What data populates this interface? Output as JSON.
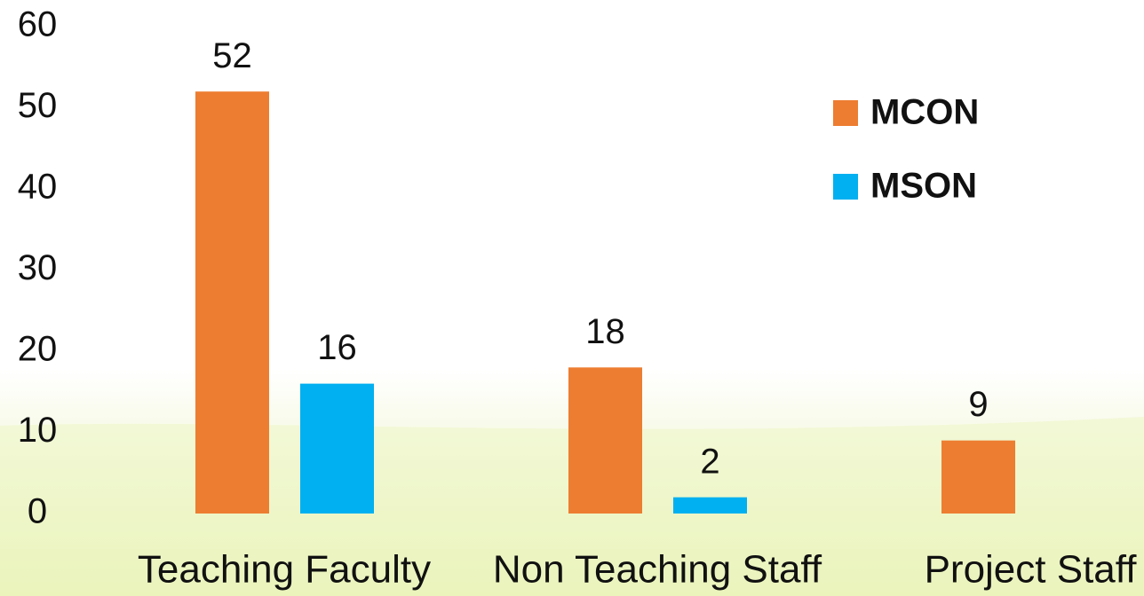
{
  "chart_data": {
    "type": "bar",
    "categories": [
      "Teaching Faculty",
      "Non Teaching Staff",
      "Project Staff"
    ],
    "series": [
      {
        "name": "MCON",
        "color": "#ed7d31",
        "values": [
          52,
          18,
          9
        ]
      },
      {
        "name": "MSON",
        "color": "#00b0f0",
        "values": [
          16,
          2,
          null
        ]
      }
    ],
    "ylim": [
      0,
      60
    ],
    "yticks": [
      0,
      10,
      20,
      30,
      40,
      50,
      60
    ],
    "grid": false,
    "legend": "upper right"
  }
}
